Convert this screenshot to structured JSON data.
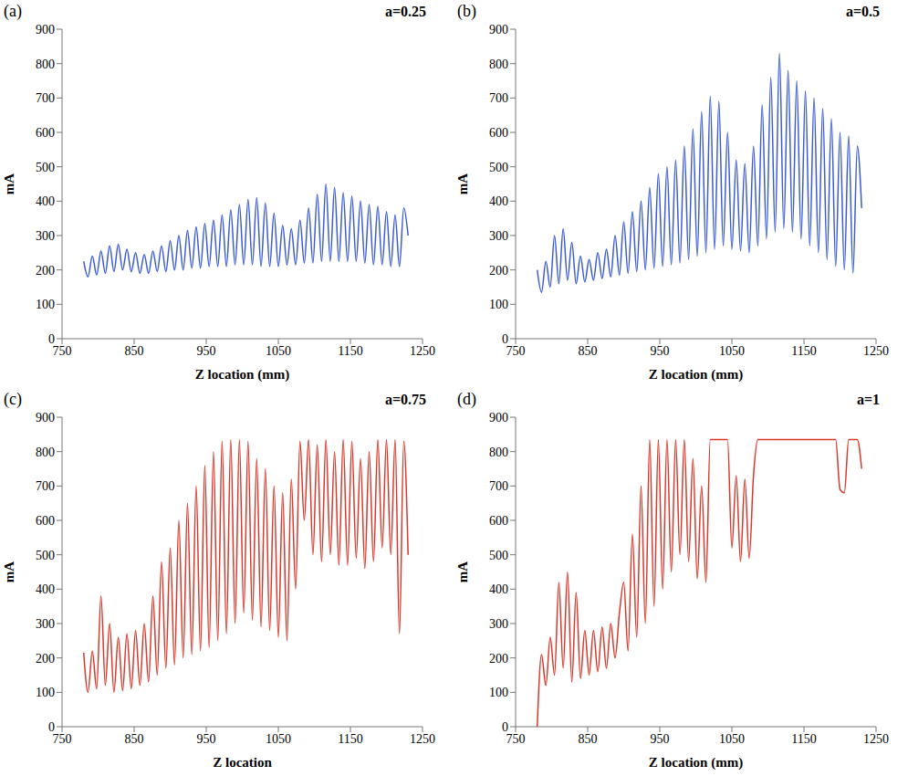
{
  "chart_data": [
    {
      "type": "line",
      "title": "a=0.25",
      "annotations": [
        "(a)"
      ],
      "x_label": "Z location (mm)",
      "y_label": "mA",
      "color": "#3b5bd6",
      "grid": false,
      "xlim": [
        750,
        1250
      ],
      "xticks": [
        750,
        850,
        950,
        1050,
        1150,
        1250
      ],
      "ylim": [
        0,
        900
      ],
      "yticks": [
        0,
        100,
        200,
        300,
        400,
        500,
        600,
        700,
        800,
        900
      ],
      "x": [
        780,
        786,
        792,
        798,
        804,
        810,
        816,
        822,
        828,
        834,
        840,
        846,
        852,
        858,
        864,
        870,
        876,
        882,
        888,
        894,
        900,
        906,
        912,
        918,
        924,
        930,
        936,
        942,
        948,
        954,
        960,
        966,
        972,
        978,
        984,
        990,
        996,
        1002,
        1008,
        1014,
        1020,
        1026,
        1032,
        1038,
        1044,
        1050,
        1056,
        1062,
        1068,
        1074,
        1080,
        1086,
        1092,
        1098,
        1104,
        1110,
        1116,
        1122,
        1128,
        1134,
        1140,
        1146,
        1152,
        1158,
        1164,
        1170,
        1176,
        1182,
        1188,
        1194,
        1200,
        1206,
        1212,
        1218,
        1224,
        1230
      ],
      "values": [
        225,
        180,
        240,
        185,
        255,
        190,
        270,
        195,
        275,
        200,
        260,
        195,
        250,
        190,
        245,
        190,
        255,
        195,
        270,
        195,
        285,
        200,
        300,
        200,
        315,
        205,
        325,
        205,
        335,
        210,
        345,
        210,
        360,
        210,
        375,
        215,
        390,
        215,
        405,
        215,
        410,
        210,
        395,
        210,
        365,
        210,
        330,
        215,
        320,
        215,
        345,
        220,
        380,
        220,
        420,
        225,
        450,
        225,
        440,
        225,
        425,
        225,
        415,
        225,
        400,
        220,
        390,
        215,
        385,
        215,
        370,
        210,
        360,
        210,
        380,
        300
      ]
    },
    {
      "type": "line",
      "title": "a=0.5",
      "annotations": [
        "(b)"
      ],
      "x_label": "Z location (mm)",
      "y_label": "mA",
      "color": "#3b5bd6",
      "grid": false,
      "xlim": [
        750,
        1250
      ],
      "xticks": [
        750,
        850,
        950,
        1050,
        1150,
        1250
      ],
      "ylim": [
        0,
        900
      ],
      "yticks": [
        0,
        100,
        200,
        300,
        400,
        500,
        600,
        700,
        800,
        900
      ],
      "x": [
        780,
        786,
        792,
        798,
        804,
        810,
        816,
        822,
        828,
        834,
        840,
        846,
        852,
        858,
        864,
        870,
        876,
        882,
        888,
        894,
        900,
        906,
        912,
        918,
        924,
        930,
        936,
        942,
        948,
        954,
        960,
        966,
        972,
        978,
        984,
        990,
        996,
        1002,
        1008,
        1014,
        1020,
        1026,
        1032,
        1038,
        1044,
        1050,
        1056,
        1062,
        1068,
        1074,
        1080,
        1086,
        1092,
        1098,
        1104,
        1110,
        1116,
        1122,
        1128,
        1134,
        1140,
        1146,
        1152,
        1158,
        1164,
        1170,
        1176,
        1182,
        1188,
        1194,
        1200,
        1206,
        1212,
        1218,
        1224,
        1230
      ],
      "values": [
        200,
        135,
        225,
        150,
        300,
        160,
        320,
        170,
        280,
        160,
        240,
        165,
        230,
        170,
        250,
        175,
        260,
        180,
        300,
        185,
        340,
        190,
        370,
        195,
        400,
        200,
        440,
        205,
        480,
        210,
        500,
        215,
        520,
        220,
        560,
        230,
        610,
        240,
        660,
        250,
        705,
        260,
        690,
        270,
        600,
        260,
        520,
        255,
        510,
        250,
        560,
        270,
        680,
        290,
        760,
        310,
        830,
        320,
        780,
        310,
        750,
        290,
        720,
        270,
        700,
        250,
        670,
        230,
        640,
        210,
        600,
        200,
        590,
        190,
        560,
        380
      ]
    },
    {
      "type": "line",
      "title": "a=0.75",
      "annotations": [
        "(c)"
      ],
      "x_label": "Z location",
      "y_label": "mA",
      "color": "#d9382b",
      "grid": false,
      "xlim": [
        750,
        1250
      ],
      "xticks": [
        750,
        850,
        950,
        1050,
        1150,
        1250
      ],
      "ylim": [
        0,
        900
      ],
      "yticks": [
        0,
        100,
        200,
        300,
        400,
        500,
        600,
        700,
        800,
        900
      ],
      "x": [
        780,
        786,
        792,
        798,
        804,
        810,
        816,
        822,
        828,
        834,
        840,
        846,
        852,
        858,
        864,
        870,
        876,
        882,
        888,
        894,
        900,
        906,
        912,
        918,
        924,
        930,
        936,
        942,
        948,
        954,
        960,
        966,
        972,
        978,
        984,
        990,
        996,
        1002,
        1008,
        1014,
        1020,
        1026,
        1032,
        1038,
        1044,
        1050,
        1056,
        1062,
        1068,
        1074,
        1080,
        1086,
        1092,
        1098,
        1104,
        1110,
        1116,
        1122,
        1128,
        1134,
        1140,
        1146,
        1152,
        1158,
        1164,
        1170,
        1176,
        1182,
        1188,
        1194,
        1200,
        1206,
        1212,
        1218,
        1224,
        1230
      ],
      "values": [
        215,
        100,
        220,
        110,
        380,
        120,
        300,
        100,
        260,
        105,
        270,
        110,
        280,
        120,
        300,
        130,
        380,
        150,
        480,
        170,
        520,
        180,
        600,
        200,
        650,
        210,
        700,
        220,
        760,
        230,
        800,
        250,
        830,
        270,
        835,
        300,
        835,
        330,
        830,
        310,
        780,
        290,
        750,
        280,
        700,
        260,
        680,
        250,
        720,
        400,
        830,
        600,
        835,
        500,
        820,
        480,
        835,
        500,
        800,
        470,
        835,
        470,
        830,
        490,
        780,
        460,
        800,
        480,
        835,
        520,
        835,
        500,
        835,
        270,
        830,
        500
      ]
    },
    {
      "type": "line",
      "title": "a=1",
      "annotations": [
        "(d)"
      ],
      "x_label": "Z location (mm)",
      "y_label": "mA",
      "color": "#d9382b",
      "grid": false,
      "xlim": [
        750,
        1250
      ],
      "xticks": [
        750,
        850,
        950,
        1050,
        1150,
        1250
      ],
      "ylim": [
        0,
        900
      ],
      "yticks": [
        0,
        100,
        200,
        300,
        400,
        500,
        600,
        700,
        800,
        900
      ],
      "x": [
        780,
        786,
        792,
        798,
        804,
        810,
        816,
        822,
        828,
        834,
        840,
        846,
        852,
        858,
        864,
        870,
        876,
        882,
        888,
        894,
        900,
        906,
        912,
        918,
        924,
        930,
        936,
        942,
        948,
        954,
        960,
        966,
        972,
        978,
        984,
        990,
        996,
        1002,
        1008,
        1014,
        1020,
        1026,
        1032,
        1038,
        1044,
        1050,
        1056,
        1062,
        1068,
        1074,
        1080,
        1086,
        1092,
        1098,
        1104,
        1110,
        1116,
        1122,
        1128,
        1134,
        1140,
        1146,
        1152,
        1158,
        1164,
        1170,
        1176,
        1182,
        1188,
        1194,
        1200,
        1206,
        1212,
        1218,
        1224,
        1230
      ],
      "values": [
        0,
        210,
        120,
        260,
        150,
        420,
        170,
        450,
        130,
        390,
        140,
        280,
        150,
        280,
        160,
        290,
        170,
        300,
        200,
        330,
        420,
        220,
        560,
        260,
        700,
        300,
        835,
        350,
        835,
        400,
        835,
        450,
        835,
        500,
        835,
        480,
        780,
        430,
        700,
        420,
        835,
        835,
        835,
        835,
        835,
        520,
        730,
        480,
        720,
        490,
        730,
        835,
        835,
        835,
        835,
        835,
        835,
        835,
        835,
        835,
        835,
        835,
        835,
        835,
        835,
        835,
        835,
        835,
        835,
        835,
        690,
        680,
        835,
        835,
        835,
        750
      ]
    }
  ]
}
